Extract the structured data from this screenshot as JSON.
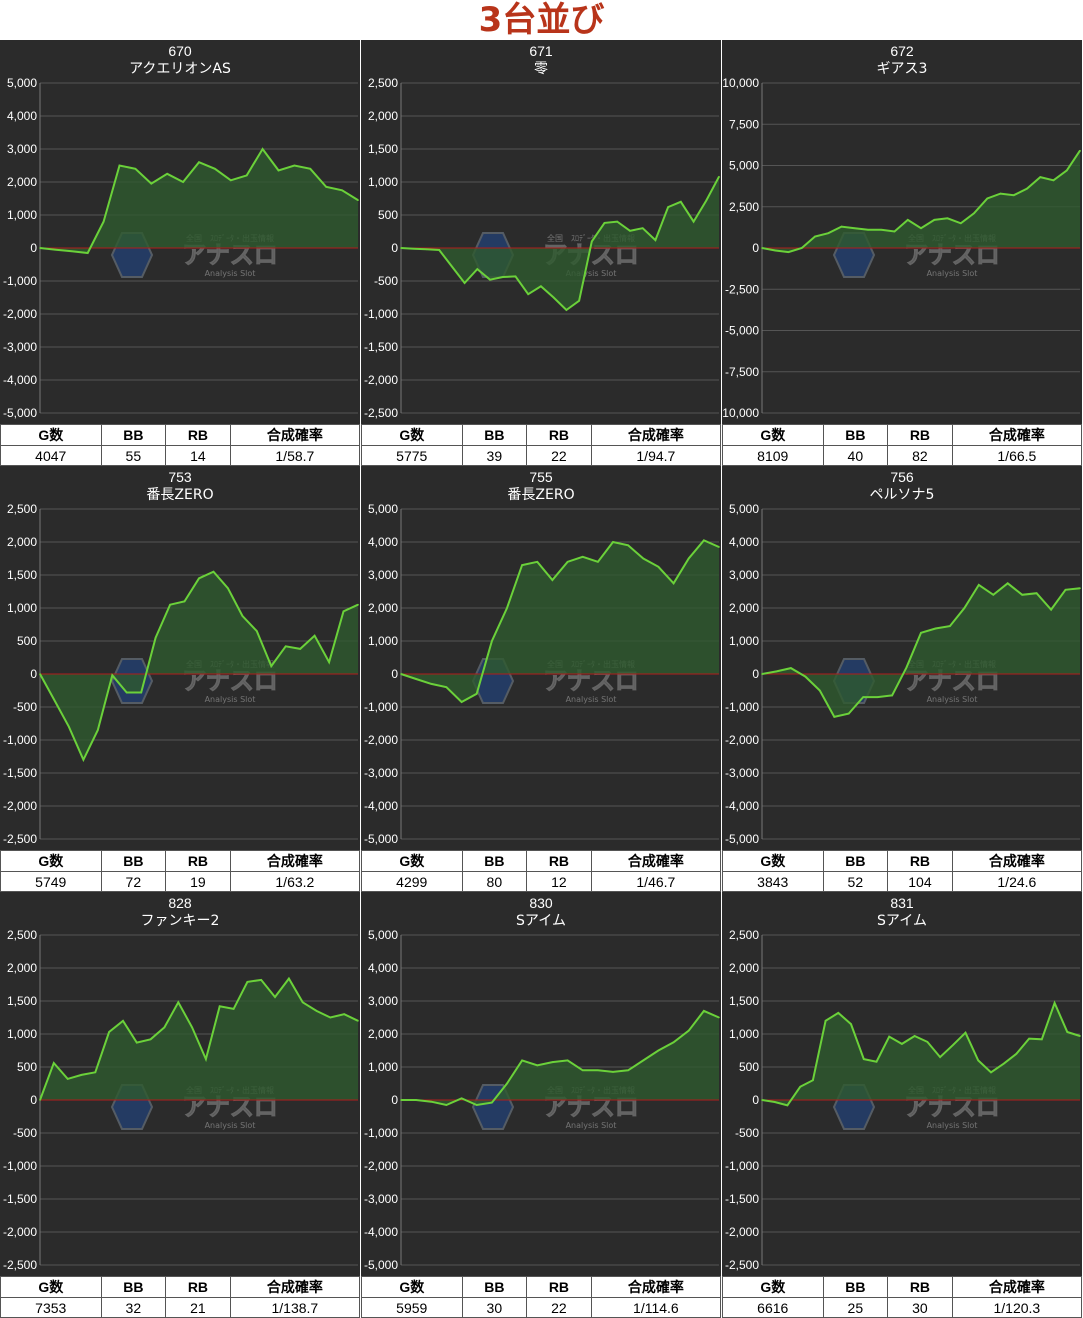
{
  "page_title": "3台並び",
  "watermark": {
    "top": "全国　ｽﾛﾃﾞｰﾀ・出玉情報",
    "main": "アナスロ",
    "sub": "Analysis Slot"
  },
  "headers": {
    "g": "G数",
    "bb": "BB",
    "rb": "RB",
    "prob": "合成確率"
  },
  "colors": {
    "background": "#2b2b2b",
    "line": "#6bd13a",
    "fill": "#2e5a2e",
    "zero_line": "#b01c1c",
    "grid": "#555555"
  },
  "chart_data": [
    {
      "type": "area",
      "number": "670",
      "name": "アクエリオンAS",
      "yticks": [
        "5,000",
        "4,000",
        "3,000",
        "2,000",
        "1,000",
        "0",
        "-1,000",
        "-2,000",
        "-3,000",
        "-4,000",
        "-5,000"
      ],
      "ylim": [
        -5000,
        5000
      ],
      "y": [
        0,
        -50,
        -100,
        -150,
        800,
        2500,
        2400,
        1950,
        2250,
        2000,
        2600,
        2400,
        2050,
        2200,
        3000,
        2350,
        2500,
        2400,
        1850,
        1750,
        1450
      ],
      "stats": {
        "g": "4047",
        "bb": "55",
        "rb": "14",
        "prob": "1/58.7"
      }
    },
    {
      "type": "area",
      "number": "671",
      "name": "零",
      "yticks": [
        "2,500",
        "2,000",
        "1,500",
        "1,000",
        "500",
        "0",
        "-500",
        "-1,000",
        "-1,500",
        "-2,000",
        "-2,500"
      ],
      "ylim": [
        -2500,
        2500
      ],
      "y": [
        0,
        -10,
        -20,
        -30,
        -280,
        -530,
        -320,
        -480,
        -440,
        -430,
        -700,
        -580,
        -750,
        -940,
        -800,
        100,
        380,
        400,
        260,
        300,
        120,
        620,
        700,
        400,
        720,
        1080
      ],
      "stats": {
        "g": "5775",
        "bb": "39",
        "rb": "22",
        "prob": "1/94.7"
      }
    },
    {
      "type": "area",
      "number": "672",
      "name": "ギアス3",
      "yticks": [
        "10,000",
        "7,500",
        "5,000",
        "2,500",
        "0",
        "-2,500",
        "-5,000",
        "-7,500",
        "-10,000"
      ],
      "ylim": [
        -10000,
        10000
      ],
      "y": [
        0,
        -150,
        -250,
        0,
        700,
        900,
        1300,
        1200,
        1100,
        1100,
        1000,
        1700,
        1200,
        1700,
        1800,
        1500,
        2100,
        3000,
        3300,
        3200,
        3600,
        4300,
        4100,
        4700,
        5900
      ],
      "stats": {
        "g": "8109",
        "bb": "40",
        "rb": "82",
        "prob": "1/66.5"
      }
    },
    {
      "type": "area",
      "number": "753",
      "name": "番長ZERO",
      "yticks": [
        "2,500",
        "2,000",
        "1,500",
        "1,000",
        "500",
        "0",
        "-500",
        "-1,000",
        "-1,500",
        "-2,000",
        "-2,500"
      ],
      "ylim": [
        -2500,
        2500
      ],
      "y": [
        0,
        -400,
        -800,
        -1300,
        -850,
        -20,
        -280,
        -280,
        550,
        1050,
        1100,
        1450,
        1550,
        1300,
        880,
        650,
        120,
        420,
        380,
        580,
        180,
        950,
        1050
      ],
      "stats": {
        "g": "5749",
        "bb": "72",
        "rb": "19",
        "prob": "1/63.2"
      }
    },
    {
      "type": "area",
      "number": "755",
      "name": "番長ZERO",
      "yticks": [
        "5,000",
        "4,000",
        "3,000",
        "2,000",
        "1,000",
        "0",
        "-1,000",
        "-2,000",
        "-3,000",
        "-4,000",
        "-5,000"
      ],
      "ylim": [
        -5000,
        5000
      ],
      "y": [
        0,
        -150,
        -300,
        -400,
        -850,
        -600,
        1000,
        2000,
        3300,
        3400,
        2850,
        3400,
        3550,
        3400,
        4000,
        3900,
        3500,
        3250,
        2750,
        3500,
        4050,
        3850
      ],
      "stats": {
        "g": "4299",
        "bb": "80",
        "rb": "12",
        "prob": "1/46.7"
      }
    },
    {
      "type": "area",
      "number": "756",
      "name": "ペルソナ5",
      "yticks": [
        "5,000",
        "4,000",
        "3,000",
        "2,000",
        "1,000",
        "0",
        "-1,000",
        "-2,000",
        "-3,000",
        "-4,000",
        "-5,000"
      ],
      "ylim": [
        -5000,
        5000
      ],
      "y": [
        0,
        80,
        180,
        -80,
        -500,
        -1300,
        -1200,
        -700,
        -700,
        -650,
        200,
        1250,
        1380,
        1450,
        2000,
        2700,
        2400,
        2750,
        2400,
        2450,
        1950,
        2550,
        2600
      ],
      "stats": {
        "g": "3843",
        "bb": "52",
        "rb": "104",
        "prob": "1/24.6"
      }
    },
    {
      "type": "area",
      "number": "828",
      "name": "ファンキー2",
      "yticks": [
        "2,500",
        "2,000",
        "1,500",
        "1,000",
        "500",
        "0",
        "-500",
        "-1,000",
        "-1,500",
        "-2,000",
        "-2,500"
      ],
      "ylim": [
        -2500,
        2500
      ],
      "y": [
        0,
        560,
        320,
        380,
        420,
        1030,
        1200,
        870,
        920,
        1100,
        1480,
        1100,
        620,
        1420,
        1380,
        1790,
        1820,
        1560,
        1840,
        1480,
        1350,
        1250,
        1300,
        1200
      ],
      "stats": {
        "g": "7353",
        "bb": "32",
        "rb": "21",
        "prob": "1/138.7"
      }
    },
    {
      "type": "area",
      "number": "830",
      "name": "Sアイム",
      "yticks": [
        "5,000",
        "4,000",
        "3,000",
        "2,000",
        "1,000",
        "0",
        "-1,000",
        "-2,000",
        "-3,000",
        "-4,000",
        "-5,000"
      ],
      "ylim": [
        -5000,
        5000
      ],
      "y": [
        0,
        0,
        -50,
        -150,
        50,
        -150,
        -80,
        500,
        1200,
        1050,
        1150,
        1200,
        900,
        900,
        850,
        900,
        1200,
        1500,
        1750,
        2100,
        2700,
        2500
      ],
      "stats": {
        "g": "5959",
        "bb": "30",
        "rb": "22",
        "prob": "1/114.6"
      }
    },
    {
      "type": "area",
      "number": "831",
      "name": "Sアイム",
      "yticks": [
        "2,500",
        "2,000",
        "1,500",
        "1,000",
        "500",
        "0",
        "-500",
        "-1,000",
        "-1,500",
        "-2,000",
        "-2,500"
      ],
      "ylim": [
        -2500,
        2500
      ],
      "y": [
        0,
        -30,
        -80,
        200,
        300,
        1200,
        1320,
        1150,
        620,
        580,
        960,
        850,
        970,
        880,
        650,
        830,
        1020,
        600,
        420,
        550,
        700,
        930,
        920,
        1470,
        1030,
        970
      ],
      "stats": {
        "g": "6616",
        "bb": "25",
        "rb": "30",
        "prob": "1/120.3"
      }
    }
  ]
}
